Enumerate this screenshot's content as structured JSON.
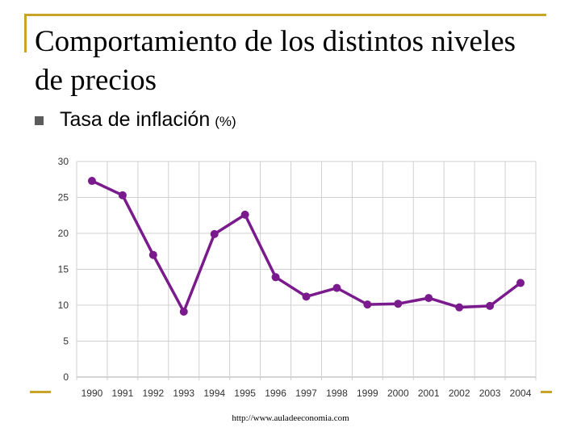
{
  "slide": {
    "title": "Comportamiento de los distintos niveles de precios",
    "bullet": "Tasa de inflación",
    "bullet_unit": "(%)",
    "source": "http://www.auladeeconomia.com"
  },
  "colors": {
    "frame": "#c8a52a",
    "series": "#7a1a8c",
    "grid": "#d0d0d0",
    "bullet": "#5c5c5c"
  },
  "chart_data": {
    "type": "line",
    "title": "",
    "xlabel": "",
    "ylabel": "",
    "categories": [
      "1990",
      "1991",
      "1992",
      "1993",
      "1994",
      "1995",
      "1996",
      "1997",
      "1998",
      "1999",
      "2000",
      "2001",
      "2002",
      "2003",
      "2004"
    ],
    "series": [
      {
        "values": [
          27.3,
          25.3,
          17.0,
          9.1,
          19.9,
          22.6,
          13.9,
          11.2,
          12.4,
          10.1,
          10.2,
          11.0,
          9.7,
          9.9,
          13.1
        ]
      }
    ],
    "ylim": [
      0,
      30
    ],
    "yticks": [
      0,
      5,
      10,
      15,
      20,
      25,
      30
    ],
    "grid": true,
    "legend": "none"
  }
}
